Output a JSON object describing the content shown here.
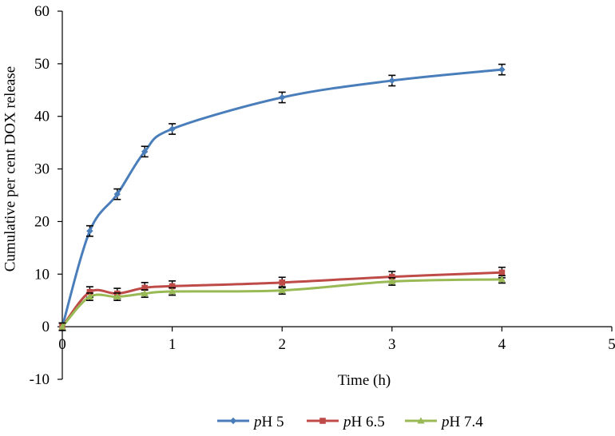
{
  "chart_data": {
    "type": "line",
    "title": "",
    "xlabel": "Time (h)",
    "ylabel": "Cumulative per cent DOX release",
    "xlim": [
      0,
      5
    ],
    "ylim": [
      -10,
      60
    ],
    "x_ticks": [
      "0",
      "1",
      "2",
      "3",
      "4",
      "5"
    ],
    "y_ticks": [
      "-10",
      "0",
      "10",
      "20",
      "30",
      "40",
      "50",
      "60"
    ],
    "grid": false,
    "legend_position": "bottom",
    "smoothed": true,
    "series": [
      {
        "name": "pH 5",
        "name_prefix": "p",
        "name_suffix": "H 5",
        "color": "#4a7ebb",
        "marker": "diamond",
        "x": [
          0,
          0.25,
          0.5,
          0.75,
          1,
          2,
          3,
          4
        ],
        "y": [
          0,
          18.2,
          25.2,
          33.3,
          37.6,
          43.6,
          46.8,
          48.9
        ],
        "error": [
          0.7,
          1.0,
          1.0,
          1.0,
          1.0,
          1.0,
          1.0,
          1.0
        ]
      },
      {
        "name": "pH 6.5",
        "name_prefix": "p",
        "name_suffix": "H 6.5",
        "color": "#be4b48",
        "marker": "square",
        "x": [
          0,
          0.25,
          0.5,
          0.75,
          1,
          2,
          3,
          4
        ],
        "y": [
          0,
          6.6,
          6.3,
          7.4,
          7.7,
          8.4,
          9.5,
          10.3
        ],
        "error": [
          0.7,
          1.0,
          1.0,
          1.0,
          1.0,
          1.0,
          1.0,
          1.0
        ]
      },
      {
        "name": "pH 7.4",
        "name_prefix": "p",
        "name_suffix": "H 7.4",
        "color": "#98b954",
        "marker": "triangle",
        "x": [
          0,
          0.25,
          0.5,
          0.75,
          1,
          2,
          3,
          4
        ],
        "y": [
          0,
          5.7,
          5.7,
          6.3,
          6.7,
          6.9,
          8.6,
          9.0
        ],
        "error": [
          0.7,
          0.7,
          0.7,
          0.7,
          0.7,
          0.7,
          0.7,
          0.7
        ]
      }
    ]
  }
}
